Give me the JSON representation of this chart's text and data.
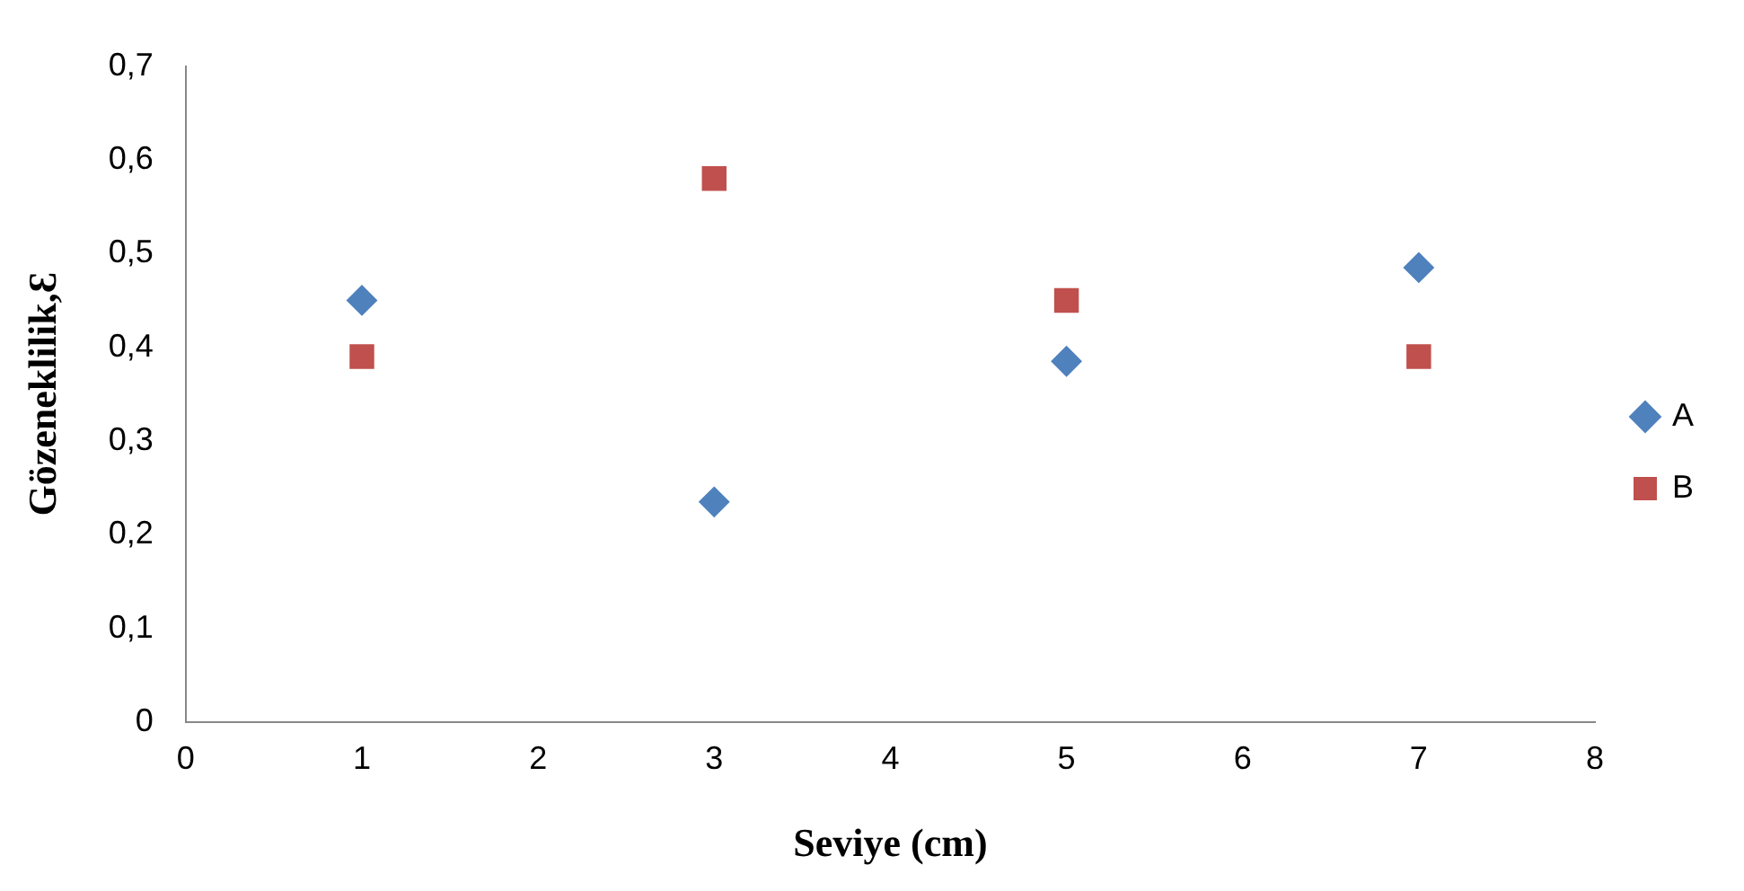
{
  "chart_data": {
    "type": "scatter",
    "xlabel": "Seviye (cm)",
    "ylabel": "Gözeneklilik,Ɛ",
    "xlim": [
      0,
      8
    ],
    "xticks": [
      0,
      1,
      2,
      3,
      4,
      5,
      6,
      7,
      8
    ],
    "ylim": [
      0,
      0.7
    ],
    "yticks": [
      {
        "value": 0,
        "label": "0"
      },
      {
        "value": 0.1,
        "label": "0,1"
      },
      {
        "value": 0.2,
        "label": "0,2"
      },
      {
        "value": 0.3,
        "label": "0,3"
      },
      {
        "value": 0.4,
        "label": "0,4"
      },
      {
        "value": 0.5,
        "label": "0,5"
      },
      {
        "value": 0.6,
        "label": "0,6"
      },
      {
        "value": 0.7,
        "label": "0,7"
      }
    ],
    "grid": false,
    "legend": "right",
    "series": [
      {
        "name": "A",
        "color": "#4f81bd",
        "marker": "diamond",
        "x": [
          1,
          3,
          5,
          7
        ],
        "values": [
          0.45,
          0.235,
          0.385,
          0.485
        ]
      },
      {
        "name": "B",
        "color": "#c0504d",
        "marker": "square",
        "x": [
          1,
          3,
          5,
          7
        ],
        "values": [
          0.39,
          0.58,
          0.45,
          0.39
        ]
      }
    ]
  }
}
